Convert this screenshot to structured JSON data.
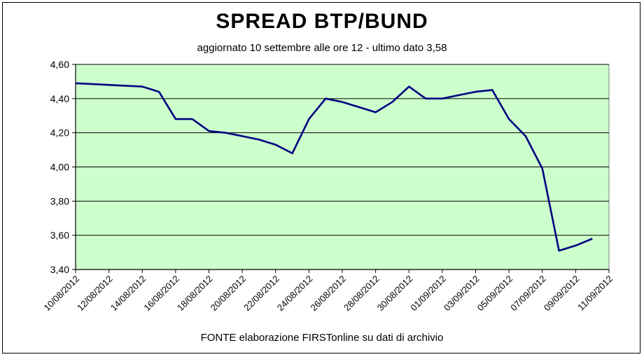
{
  "chart_data": {
    "type": "line",
    "title": "SPREAD  BTP/BUND",
    "subtitle": "aggiornato 10 settembre alle ore 12 - ultimo dato 3,58",
    "source": "FONTE elaborazione FIRSTonline su dati di archivio",
    "ylim": [
      3.4,
      4.6
    ],
    "yticks": [
      3.4,
      3.6,
      3.8,
      4.0,
      4.2,
      4.4,
      4.6
    ],
    "ytick_labels": [
      "3,40",
      "3,60",
      "3,80",
      "4,00",
      "4,20",
      "4,40",
      "4,60"
    ],
    "xtick_labels": [
      "10/08/2012",
      "12/08/2012",
      "14/08/2012",
      "16/08/2012",
      "18/08/2012",
      "20/08/2012",
      "22/08/2012",
      "24/08/2012",
      "26/08/2012",
      "28/08/2012",
      "30/08/2012",
      "01/09/2012",
      "03/09/2012",
      "05/09/2012",
      "07/09/2012",
      "09/09/2012",
      "11/09/2012"
    ],
    "xlim": [
      "2012-08-10",
      "2012-09-11"
    ],
    "grid": true,
    "plot_background": "#ccffcc",
    "line_color": "#000080",
    "series": [
      {
        "x": [
          "2012-08-10",
          "2012-08-12",
          "2012-08-14",
          "2012-08-15",
          "2012-08-16",
          "2012-08-17",
          "2012-08-18",
          "2012-08-19",
          "2012-08-20",
          "2012-08-21",
          "2012-08-22",
          "2012-08-23",
          "2012-08-24",
          "2012-08-25",
          "2012-08-26",
          "2012-08-27",
          "2012-08-28",
          "2012-08-29",
          "2012-08-30",
          "2012-08-31",
          "2012-09-01",
          "2012-09-02",
          "2012-09-03",
          "2012-09-04",
          "2012-09-05",
          "2012-09-06",
          "2012-09-07",
          "2012-09-08",
          "2012-09-09",
          "2012-09-10"
        ],
        "values": [
          4.49,
          4.48,
          4.47,
          4.44,
          4.28,
          4.28,
          4.21,
          4.2,
          4.18,
          4.16,
          4.13,
          4.08,
          4.28,
          4.4,
          4.38,
          4.35,
          4.32,
          4.38,
          4.47,
          4.4,
          4.4,
          4.42,
          4.44,
          4.45,
          4.28,
          4.18,
          3.99,
          3.51,
          3.54,
          3.58
        ]
      }
    ]
  }
}
